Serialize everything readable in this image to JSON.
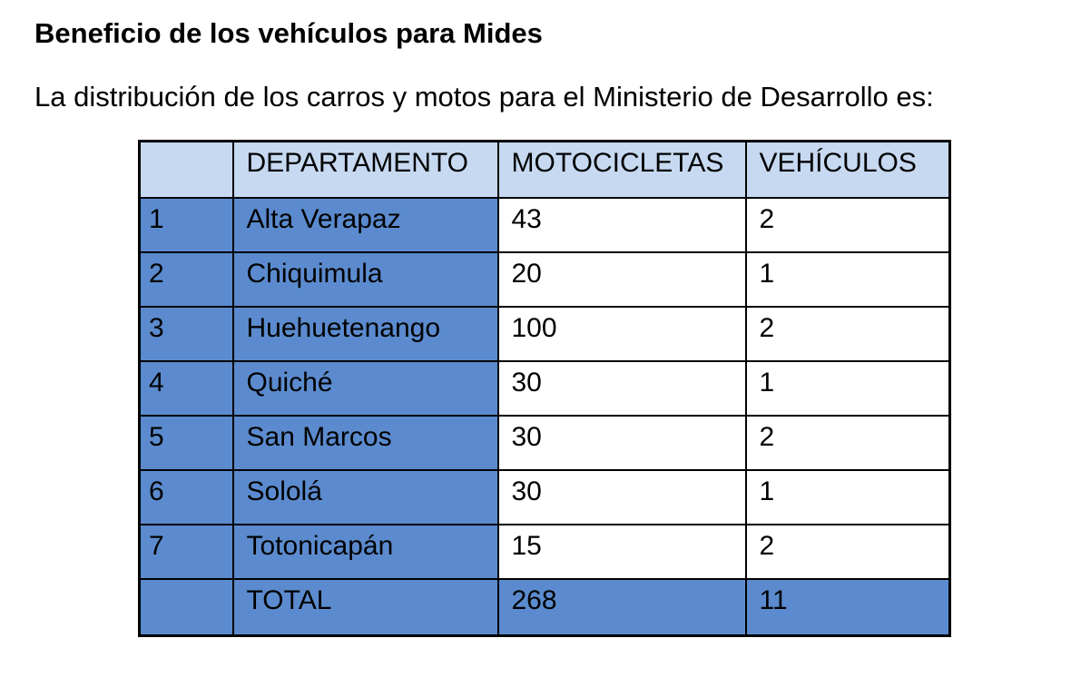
{
  "document": {
    "title": "Beneficio de los vehículos para Mides",
    "intro": "La distribución de los carros y motos para el Ministerio de Desarrollo es:",
    "table": {
      "headers": [
        "",
        "DEPARTAMENTO",
        "MOTOCICLETAS",
        "VEHÍCULOS"
      ],
      "rows": [
        {
          "num": "1",
          "departamento": "Alta Verapaz",
          "motocicletas": "43",
          "vehiculos": "2"
        },
        {
          "num": "2",
          "departamento": "Chiquimula",
          "motocicletas": "20",
          "vehiculos": "1"
        },
        {
          "num": "3",
          "departamento": "Huehuetenango",
          "motocicletas": "100",
          "vehiculos": "2"
        },
        {
          "num": "4",
          "departamento": "Quiché",
          "motocicletas": "30",
          "vehiculos": "1"
        },
        {
          "num": "5",
          "departamento": "San Marcos",
          "motocicletas": "30",
          "vehiculos": "2"
        },
        {
          "num": "6",
          "departamento": "Sololá",
          "motocicletas": "30",
          "vehiculos": "1"
        },
        {
          "num": "7",
          "departamento": "Totonicapán",
          "motocicletas": "15",
          "vehiculos": "2"
        }
      ],
      "total": {
        "num": "",
        "label": "TOTAL",
        "motocicletas": "268",
        "vehiculos": "11"
      }
    },
    "colors": {
      "header_bg": "#C6D9F1",
      "accent_bg": "#5B8BCE",
      "border": "#000000"
    }
  }
}
